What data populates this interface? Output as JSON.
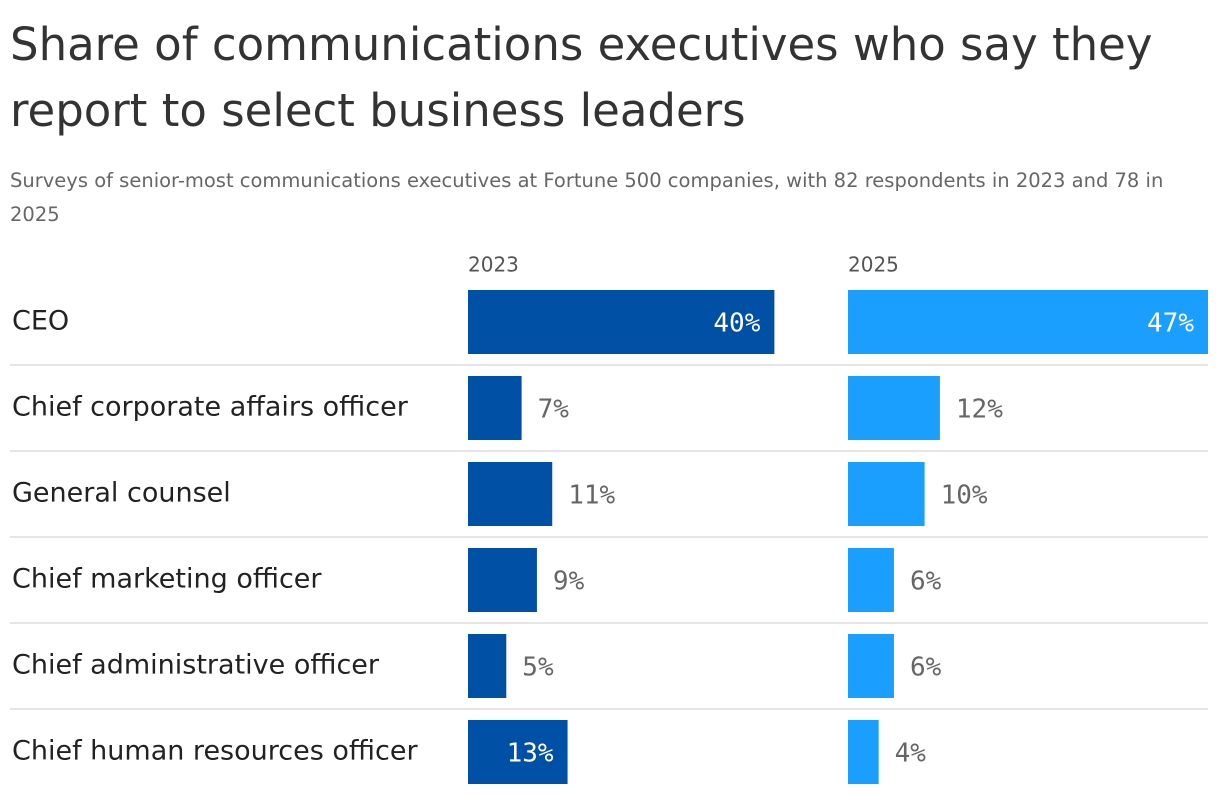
{
  "chart_data": {
    "type": "bar",
    "title": "Share of communications executives who say they report to select business leaders",
    "subtitle": "Surveys of senior-most communications executives at Fortune 500 companies, with 82 respondents in 2023 and 78 in 2025",
    "categories": [
      "CEO",
      "Chief corporate affairs officer",
      "General counsel",
      "Chief marketing officer",
      "Chief administrative officer",
      "Chief human resources officer"
    ],
    "series": [
      {
        "name": "2023",
        "color": "#0050a5",
        "values": [
          40,
          7,
          11,
          9,
          5,
          13
        ],
        "value_labels": [
          "40%",
          "7%",
          "11%",
          "9%",
          "5%",
          "13%"
        ]
      },
      {
        "name": "2025",
        "color": "#1a9fff",
        "values": [
          47,
          12,
          10,
          6,
          6,
          4
        ],
        "value_labels": [
          "47%",
          "12%",
          "10%",
          "6%",
          "6%",
          "4%"
        ]
      }
    ]
  }
}
